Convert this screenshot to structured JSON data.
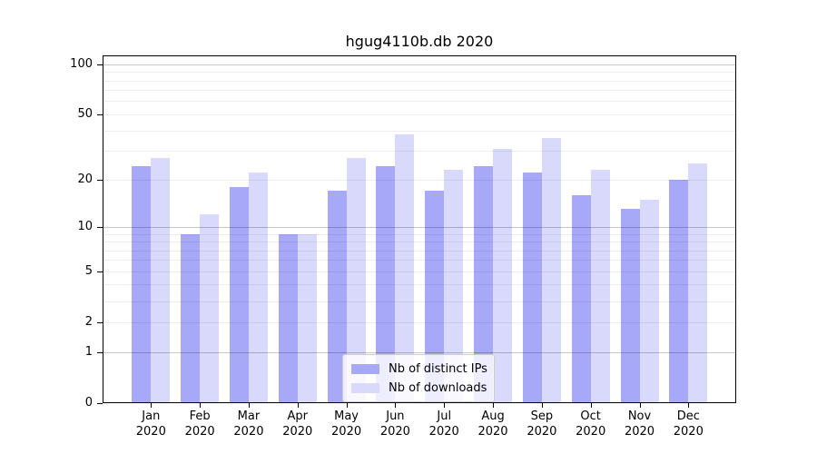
{
  "chart_data": {
    "type": "bar",
    "title": "hgug4110b.db 2020",
    "categories": [
      "Jan 2020",
      "Feb 2020",
      "Mar 2020",
      "Apr 2020",
      "May 2020",
      "Jun 2020",
      "Jul 2020",
      "Aug 2020",
      "Sep 2020",
      "Oct 2020",
      "Nov 2020",
      "Dec 2020"
    ],
    "series": [
      {
        "name": "Nb of distinct IPs",
        "color": "#a8a8f8",
        "values": [
          24,
          9,
          18,
          9,
          17,
          24,
          17,
          24,
          22,
          16,
          13,
          20
        ]
      },
      {
        "name": "Nb of downloads",
        "color": "#d9d9fb",
        "values": [
          27,
          12,
          22,
          9,
          27,
          38,
          23,
          31,
          36,
          23,
          15,
          25
        ]
      }
    ],
    "xlabel": "",
    "ylabel": "",
    "yscale": "log1p",
    "y_ticks": [
      0,
      1,
      2,
      5,
      10,
      20,
      50,
      100
    ],
    "ylim": [
      0,
      113
    ],
    "grid": true,
    "legend_position": "bottom-center"
  }
}
